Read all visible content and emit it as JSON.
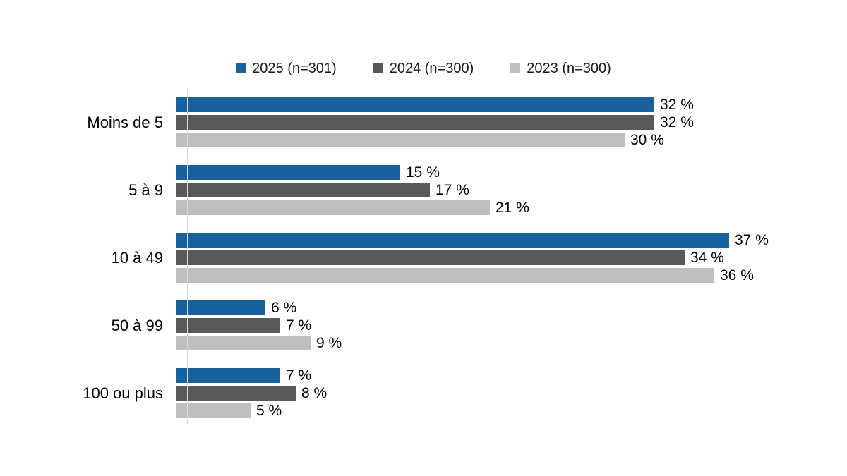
{
  "chart_data": {
    "type": "bar",
    "orientation": "horizontal",
    "title": "",
    "xlabel": "",
    "ylabel": "",
    "grid": false,
    "legend_position": "top",
    "axis_line_color": "#d9d9d9",
    "xlim": [
      0,
      40
    ],
    "categories": [
      "Moins de 5",
      "5 à 9",
      "10 à 49",
      "50 à 99",
      "100 ou plus"
    ],
    "series": [
      {
        "name": "2025 (n=301)",
        "color": "#17619c",
        "values": [
          32,
          15,
          37,
          6,
          7
        ],
        "labels": [
          "32 %",
          "15 %",
          "37 %",
          "6 %",
          "7 %"
        ]
      },
      {
        "name": "2024 (n=300)",
        "color": "#595959",
        "values": [
          32,
          17,
          34,
          7,
          8
        ],
        "labels": [
          "32 %",
          "17 %",
          "34 %",
          "7 %",
          "8 %"
        ]
      },
      {
        "name": "2023 (n=300)",
        "color": "#bfbfbf",
        "values": [
          30,
          21,
          36,
          9,
          5
        ],
        "labels": [
          "30 %",
          "21 %",
          "36 %",
          "9 %",
          "5 %"
        ]
      }
    ]
  }
}
